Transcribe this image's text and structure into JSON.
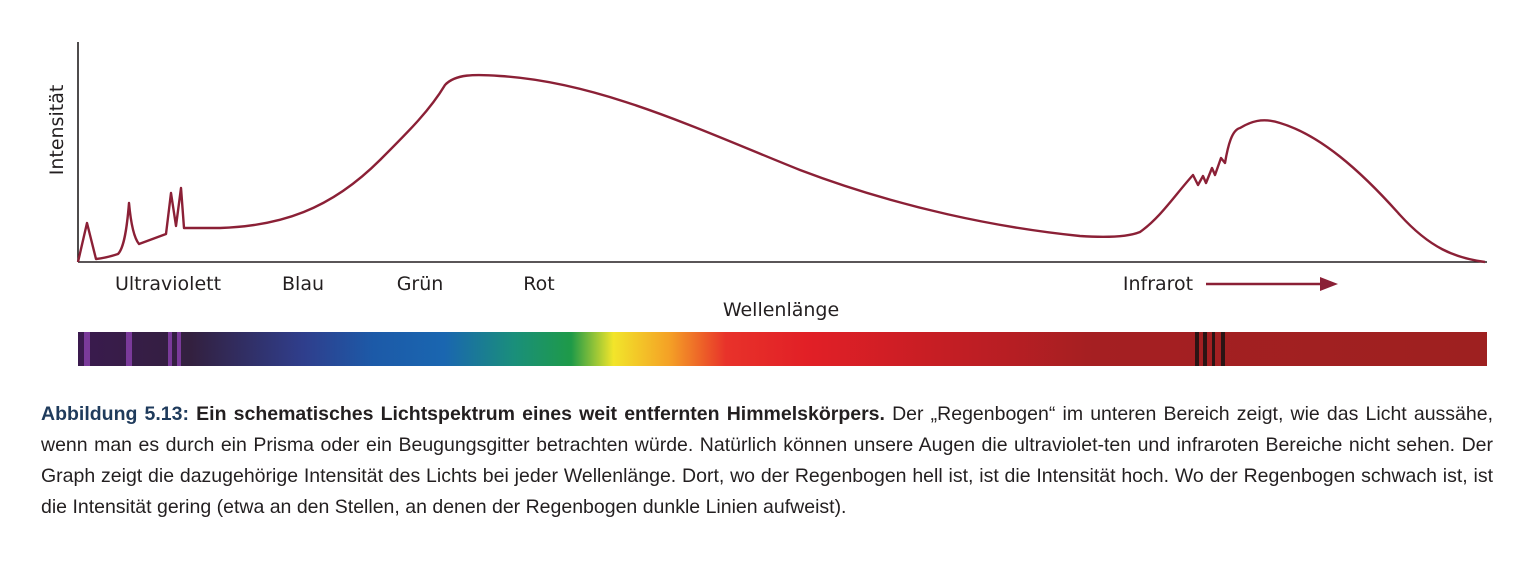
{
  "chart_data": {
    "type": "line",
    "title": "",
    "xlabel": "Wellenlänge",
    "ylabel": "Intensität",
    "x_region_labels": [
      "Ultraviolett",
      "Blau",
      "Grün",
      "Rot",
      "Infrarot"
    ],
    "line_color": "#8b2036",
    "arrow_color": "#8b2036",
    "ticks": "none",
    "grid": false,
    "legend": "none"
  },
  "caption": {
    "figure_label": "Abbildung 5.13:",
    "figure_title": "Ein schematisches Lichtspektrum eines weit entfernten Himmelskörpers.",
    "text": "Der „Regenbogen“ im unteren Bereich zeigt, wie das Licht aussähe, wenn man es durch ein Prisma oder ein Beugungsgitter betrachten würde. Natürlich können unsere Augen die ultraviolet-ten und infraroten Bereiche nicht sehen. Der Graph zeigt die dazugehörige Intensität des Lichts bei jeder Wellenlänge. Dort, wo der Regenbogen hell ist, ist die Intensität hoch. Wo der Regenbogen schwach ist, ist die Intensität gering (etwa an den Stellen, an denen der Regenbogen dunkle Linien aufweist)."
  },
  "colors": {
    "caption_label": "#1f3b5c",
    "curve": "#8b2036",
    "axis": "#231f20"
  }
}
